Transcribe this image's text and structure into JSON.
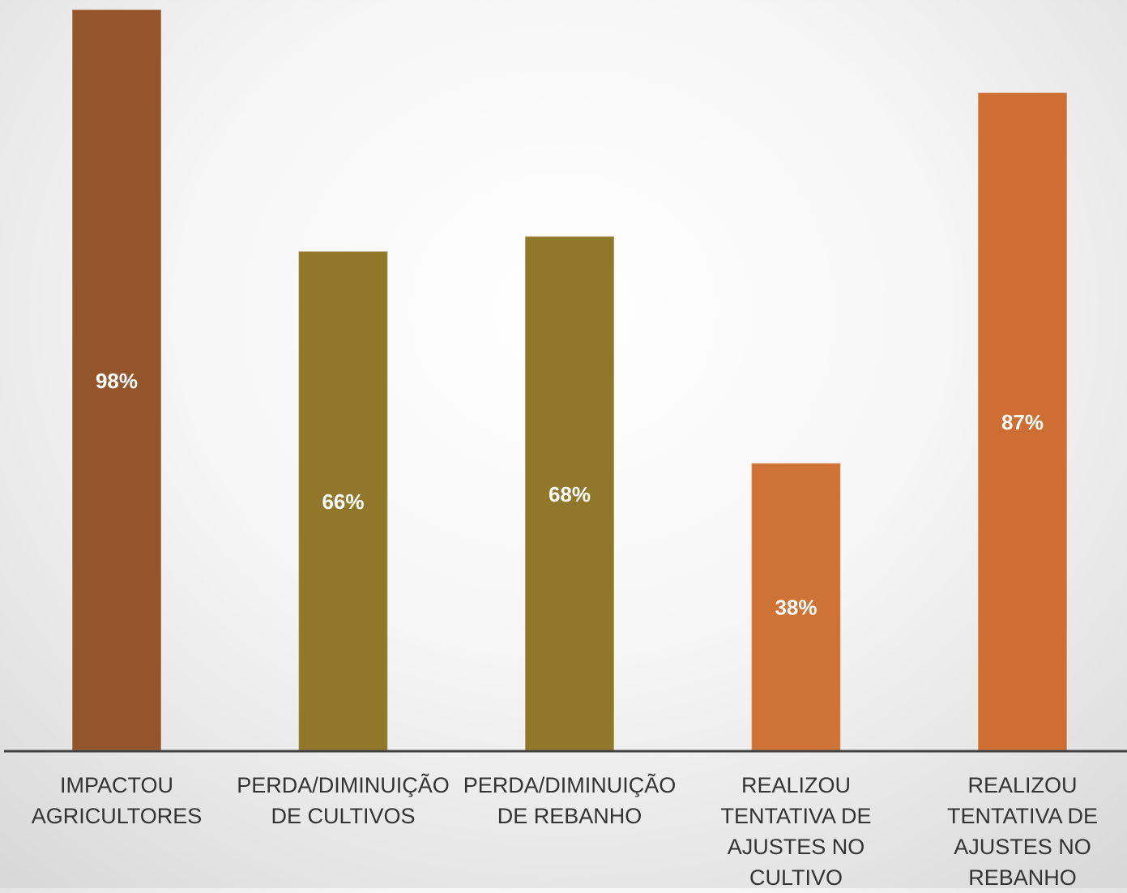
{
  "chart_data": {
    "type": "bar",
    "categories": [
      "IMPACTOU AGRICULTORES",
      "PERDA/DIMINUIÇÃO DE CULTIVOS",
      "PERDA/DIMINUIÇÃO DE REBANHO",
      "REALIZOU TENTATIVA DE AJUSTES NO CULTIVO",
      "REALIZOU TENTATIVA DE AJUSTES NO REBANHO"
    ],
    "values": [
      98,
      66,
      68,
      38,
      87
    ],
    "data_labels": [
      "98%",
      "66%",
      "68%",
      "38%",
      "87%"
    ],
    "colors": [
      "#94552b",
      "#91772a",
      "#91772a",
      "#ce7235",
      "#ce6e32"
    ],
    "title": "",
    "xlabel": "",
    "ylabel": "",
    "ylim": [
      0,
      100
    ],
    "grid": false,
    "legend": "none"
  }
}
